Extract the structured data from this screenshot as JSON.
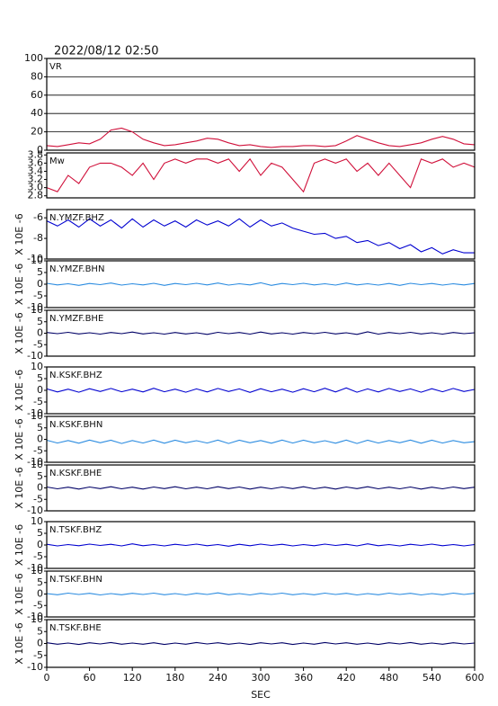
{
  "chart_data": [
    {
      "type": "line",
      "title": "2022/08/12 02:50",
      "label": "VR",
      "color": "#d0103a",
      "grid": true,
      "xlim": [
        0,
        600
      ],
      "ylim": [
        0,
        100
      ],
      "yticks": [
        0,
        20,
        40,
        60,
        80,
        100
      ],
      "x": [
        0,
        15,
        30,
        45,
        60,
        75,
        90,
        105,
        120,
        135,
        150,
        165,
        180,
        195,
        210,
        225,
        240,
        255,
        270,
        285,
        300,
        315,
        330,
        345,
        360,
        375,
        390,
        405,
        420,
        435,
        450,
        465,
        480,
        495,
        510,
        525,
        540,
        555,
        570,
        585,
        600
      ],
      "values": [
        5,
        4,
        6,
        8,
        7,
        12,
        22,
        24,
        20,
        12,
        8,
        5,
        6,
        8,
        10,
        13,
        12,
        8,
        5,
        6,
        4,
        3,
        4,
        4,
        5,
        5,
        4,
        5,
        10,
        16,
        12,
        8,
        5,
        4,
        6,
        8,
        12,
        15,
        12,
        7,
        6
      ]
    },
    {
      "type": "line",
      "label": "Mw",
      "color": "#d0103a",
      "xlim": [
        0,
        600
      ],
      "ylim": [
        2.75,
        3.85
      ],
      "yticks": [
        2.8,
        {
          "value": 3,
          "label": "3.0"
        },
        3.2,
        3.4,
        3.6,
        3.8
      ],
      "x": [
        0,
        15,
        30,
        45,
        60,
        75,
        90,
        105,
        120,
        135,
        150,
        165,
        180,
        195,
        210,
        225,
        240,
        255,
        270,
        285,
        300,
        315,
        330,
        345,
        360,
        375,
        390,
        405,
        420,
        435,
        450,
        465,
        480,
        495,
        510,
        525,
        540,
        555,
        570,
        585,
        600
      ],
      "values": [
        3.0,
        2.9,
        3.3,
        3.1,
        3.5,
        3.6,
        3.6,
        3.5,
        3.3,
        3.6,
        3.2,
        3.6,
        3.7,
        3.6,
        3.7,
        3.7,
        3.6,
        3.7,
        3.4,
        3.7,
        3.3,
        3.6,
        3.5,
        3.2,
        2.9,
        3.6,
        3.7,
        3.6,
        3.7,
        3.4,
        3.6,
        3.3,
        3.6,
        3.3,
        3.0,
        3.7,
        3.6,
        3.7,
        3.5,
        3.6,
        3.5
      ]
    },
    {
      "type": "line",
      "label": "N.YMZF.BHZ",
      "ylabel": "X 10E -6",
      "color": "#0000d0",
      "xlim": [
        0,
        600
      ],
      "ylim": [
        -10,
        -5.2
      ],
      "yticks": [
        -10,
        -8,
        -6
      ],
      "x": [
        0,
        15,
        30,
        45,
        60,
        75,
        90,
        105,
        120,
        135,
        150,
        165,
        180,
        195,
        210,
        225,
        240,
        255,
        270,
        285,
        300,
        315,
        330,
        345,
        360,
        375,
        390,
        405,
        420,
        435,
        450,
        465,
        480,
        495,
        510,
        525,
        540,
        555,
        570,
        585,
        600
      ],
      "values": [
        -6.3,
        -6.8,
        -6.2,
        -6.9,
        -6.1,
        -6.8,
        -6.2,
        -7.0,
        -6.1,
        -6.9,
        -6.2,
        -6.8,
        -6.3,
        -6.9,
        -6.2,
        -6.7,
        -6.3,
        -6.8,
        -6.1,
        -6.9,
        -6.2,
        -6.8,
        -6.5,
        -7.0,
        -7.3,
        -7.6,
        -7.5,
        -8.0,
        -7.8,
        -8.4,
        -8.2,
        -8.7,
        -8.4,
        -9.0,
        -8.6,
        -9.3,
        -8.9,
        -9.5,
        -9.1,
        -9.4,
        -9.4
      ]
    },
    {
      "type": "line",
      "label": "N.YMZF.BHN",
      "ylabel": "X 10E -6",
      "color": "#2a8be0",
      "xlim": [
        0,
        600
      ],
      "ylim": [
        -10,
        10
      ],
      "yticks": [
        -10,
        -5,
        0,
        5,
        10
      ],
      "x": [
        0,
        15,
        30,
        45,
        60,
        75,
        90,
        105,
        120,
        135,
        150,
        165,
        180,
        195,
        210,
        225,
        240,
        255,
        270,
        285,
        300,
        315,
        330,
        345,
        360,
        375,
        390,
        405,
        420,
        435,
        450,
        465,
        480,
        495,
        510,
        525,
        540,
        555,
        570,
        585,
        600
      ],
      "values": [
        0.4,
        -0.3,
        0.2,
        -0.5,
        0.3,
        -0.2,
        0.5,
        -0.4,
        0.2,
        -0.3,
        0.4,
        -0.5,
        0.3,
        -0.2,
        0.4,
        -0.3,
        0.5,
        -0.4,
        0.2,
        -0.3,
        0.6,
        -0.5,
        0.3,
        -0.2,
        0.4,
        -0.3,
        0.2,
        -0.4,
        0.5,
        -0.3,
        0.2,
        -0.4,
        0.3,
        -0.5,
        0.4,
        -0.2,
        0.3,
        -0.4,
        0.2,
        -0.3,
        0.3
      ]
    },
    {
      "type": "line",
      "label": "N.YMZF.BHE",
      "ylabel": "X 10E -6",
      "color": "#000066",
      "xlim": [
        0,
        600
      ],
      "ylim": [
        -10,
        10
      ],
      "yticks": [
        -10,
        -5,
        0,
        5,
        10
      ],
      "x": [
        0,
        15,
        30,
        45,
        60,
        75,
        90,
        105,
        120,
        135,
        150,
        165,
        180,
        195,
        210,
        225,
        240,
        255,
        270,
        285,
        300,
        315,
        330,
        345,
        360,
        375,
        390,
        405,
        420,
        435,
        450,
        465,
        480,
        495,
        510,
        525,
        540,
        555,
        570,
        585,
        600
      ],
      "values": [
        0.3,
        -0.2,
        0.4,
        -0.3,
        0.2,
        -0.4,
        0.3,
        -0.2,
        0.5,
        -0.3,
        0.2,
        -0.4,
        0.3,
        -0.3,
        0.2,
        -0.5,
        0.4,
        -0.2,
        0.3,
        -0.4,
        0.5,
        -0.3,
        0.2,
        -0.4,
        0.3,
        -0.2,
        0.4,
        -0.3,
        0.2,
        -0.5,
        0.6,
        -0.4,
        0.3,
        -0.2,
        0.4,
        -0.3,
        0.2,
        -0.4,
        0.3,
        -0.2,
        0.2
      ]
    },
    {
      "type": "line",
      "label": "N.KSKF.BHZ",
      "ylabel": "X 10E -6",
      "color": "#0000d0",
      "xlim": [
        0,
        600
      ],
      "ylim": [
        -10,
        10
      ],
      "yticks": [
        -10,
        -5,
        0,
        5,
        10
      ],
      "x": [
        0,
        15,
        30,
        45,
        60,
        75,
        90,
        105,
        120,
        135,
        150,
        165,
        180,
        195,
        210,
        225,
        240,
        255,
        270,
        285,
        300,
        315,
        330,
        345,
        360,
        375,
        390,
        405,
        420,
        435,
        450,
        465,
        480,
        495,
        510,
        525,
        540,
        555,
        570,
        585,
        600
      ],
      "values": [
        0.6,
        -0.7,
        0.5,
        -0.8,
        0.7,
        -0.5,
        0.8,
        -0.6,
        0.5,
        -0.7,
        0.9,
        -0.6,
        0.5,
        -0.8,
        0.6,
        -0.7,
        0.8,
        -0.5,
        0.6,
        -0.9,
        0.7,
        -0.6,
        0.5,
        -0.8,
        0.7,
        -0.6,
        0.9,
        -0.7,
        1.0,
        -0.8,
        0.6,
        -0.7,
        0.8,
        -0.5,
        0.6,
        -0.8,
        0.7,
        -0.6,
        0.8,
        -0.5,
        0.4
      ]
    },
    {
      "type": "line",
      "label": "N.KSKF.BHN",
      "ylabel": "X 10E -6",
      "color": "#2a8be0",
      "xlim": [
        0,
        600
      ],
      "ylim": [
        -10,
        10
      ],
      "yticks": [
        -10,
        -5,
        0,
        5,
        10
      ],
      "x": [
        0,
        15,
        30,
        45,
        60,
        75,
        90,
        105,
        120,
        135,
        150,
        165,
        180,
        195,
        210,
        225,
        240,
        255,
        270,
        285,
        300,
        315,
        330,
        345,
        360,
        375,
        390,
        405,
        420,
        435,
        450,
        465,
        480,
        495,
        510,
        525,
        540,
        555,
        570,
        585,
        600
      ],
      "values": [
        -0.4,
        -1.6,
        -0.5,
        -1.7,
        -0.3,
        -1.5,
        -0.4,
        -1.8,
        -0.5,
        -1.6,
        -0.3,
        -1.7,
        -0.4,
        -1.5,
        -0.6,
        -1.6,
        -0.3,
        -1.8,
        -0.4,
        -1.5,
        -0.5,
        -1.7,
        -0.3,
        -1.6,
        -0.4,
        -1.5,
        -0.6,
        -1.7,
        -0.3,
        -1.8,
        -0.4,
        -1.6,
        -0.5,
        -1.5,
        -0.3,
        -1.7,
        -0.4,
        -1.6,
        -0.5,
        -1.5,
        -1.0
      ]
    },
    {
      "type": "line",
      "label": "N.KSKF.BHE",
      "ylabel": "X 10E -6",
      "color": "#000066",
      "xlim": [
        0,
        600
      ],
      "ylim": [
        -10,
        10
      ],
      "yticks": [
        -10,
        -5,
        0,
        5,
        10
      ],
      "x": [
        0,
        15,
        30,
        45,
        60,
        75,
        90,
        105,
        120,
        135,
        150,
        165,
        180,
        195,
        210,
        225,
        240,
        255,
        270,
        285,
        300,
        315,
        330,
        345,
        360,
        375,
        390,
        405,
        420,
        435,
        450,
        465,
        480,
        495,
        510,
        525,
        540,
        555,
        570,
        585,
        600
      ],
      "values": [
        0.4,
        -0.4,
        0.3,
        -0.5,
        0.4,
        -0.3,
        0.5,
        -0.4,
        0.3,
        -0.5,
        0.4,
        -0.3,
        0.5,
        -0.4,
        0.3,
        -0.4,
        0.5,
        -0.3,
        0.4,
        -0.5,
        0.3,
        -0.4,
        0.4,
        -0.3,
        0.5,
        -0.4,
        0.3,
        -0.5,
        0.4,
        -0.3,
        0.5,
        -0.4,
        0.3,
        -0.4,
        0.4,
        -0.5,
        0.3,
        -0.4,
        0.4,
        -0.3,
        0.3
      ]
    },
    {
      "type": "line",
      "label": "N.TSKF.BHZ",
      "ylabel": "X 10E -6",
      "color": "#0000d0",
      "xlim": [
        0,
        600
      ],
      "ylim": [
        -10,
        10
      ],
      "yticks": [
        -10,
        -5,
        0,
        5,
        10
      ],
      "x": [
        0,
        15,
        30,
        45,
        60,
        75,
        90,
        105,
        120,
        135,
        150,
        165,
        180,
        195,
        210,
        225,
        240,
        255,
        270,
        285,
        300,
        315,
        330,
        345,
        360,
        375,
        390,
        405,
        420,
        435,
        450,
        465,
        480,
        495,
        510,
        525,
        540,
        555,
        570,
        585,
        600
      ],
      "values": [
        0.3,
        -0.4,
        0.2,
        -0.3,
        0.4,
        -0.2,
        0.3,
        -0.4,
        0.5,
        -0.3,
        0.2,
        -0.4,
        0.3,
        -0.2,
        0.4,
        -0.3,
        0.2,
        -0.5,
        0.3,
        -0.3,
        0.4,
        -0.2,
        0.3,
        -0.4,
        0.2,
        -0.3,
        0.4,
        -0.2,
        0.3,
        -0.4,
        0.5,
        -0.3,
        0.2,
        -0.4,
        0.3,
        -0.2,
        0.4,
        -0.3,
        0.2,
        -0.4,
        0.2
      ]
    },
    {
      "type": "line",
      "label": "N.TSKF.BHN",
      "ylabel": "X 10E -6",
      "color": "#2a8be0",
      "xlim": [
        0,
        600
      ],
      "ylim": [
        -10,
        10
      ],
      "yticks": [
        -10,
        -5,
        0,
        5,
        10
      ],
      "x": [
        0,
        15,
        30,
        45,
        60,
        75,
        90,
        105,
        120,
        135,
        150,
        165,
        180,
        195,
        210,
        225,
        240,
        255,
        270,
        285,
        300,
        315,
        330,
        345,
        360,
        375,
        390,
        405,
        420,
        435,
        450,
        465,
        480,
        495,
        510,
        525,
        540,
        555,
        570,
        585,
        600
      ],
      "values": [
        0.2,
        -0.3,
        0.4,
        -0.2,
        0.3,
        -0.4,
        0.2,
        -0.3,
        0.3,
        -0.2,
        0.4,
        -0.3,
        0.2,
        -0.4,
        0.3,
        -0.2,
        0.5,
        -0.3,
        0.2,
        -0.4,
        0.3,
        -0.2,
        0.4,
        -0.3,
        0.2,
        -0.3,
        0.4,
        -0.2,
        0.3,
        -0.4,
        0.2,
        -0.3,
        0.4,
        -0.2,
        0.3,
        -0.4,
        0.2,
        -0.3,
        0.4,
        -0.2,
        0.3
      ]
    },
    {
      "type": "line",
      "label": "N.TSKF.BHE",
      "ylabel": "X 10E -6",
      "color": "#000066",
      "xlabel": "SEC",
      "xticks": [
        0,
        60,
        120,
        180,
        240,
        300,
        360,
        420,
        480,
        540,
        600
      ],
      "xlim": [
        0,
        600
      ],
      "ylim": [
        -10,
        10
      ],
      "yticks": [
        -10,
        -5,
        0,
        5,
        10
      ],
      "x": [
        0,
        15,
        30,
        45,
        60,
        75,
        90,
        105,
        120,
        135,
        150,
        165,
        180,
        195,
        210,
        225,
        240,
        255,
        270,
        285,
        300,
        315,
        330,
        345,
        360,
        375,
        390,
        405,
        420,
        435,
        450,
        465,
        480,
        495,
        510,
        525,
        540,
        555,
        570,
        585,
        600
      ],
      "values": [
        0.3,
        -0.3,
        0.2,
        -0.4,
        0.3,
        -0.2,
        0.4,
        -0.3,
        0.2,
        -0.3,
        0.3,
        -0.4,
        0.2,
        -0.3,
        0.4,
        -0.2,
        0.3,
        -0.3,
        0.2,
        -0.4,
        0.3,
        -0.2,
        0.3,
        -0.4,
        0.2,
        -0.3,
        0.4,
        -0.2,
        0.3,
        -0.3,
        0.2,
        -0.4,
        0.3,
        -0.2,
        0.4,
        -0.3,
        0.2,
        -0.3,
        0.3,
        -0.2,
        0.2
      ]
    }
  ]
}
